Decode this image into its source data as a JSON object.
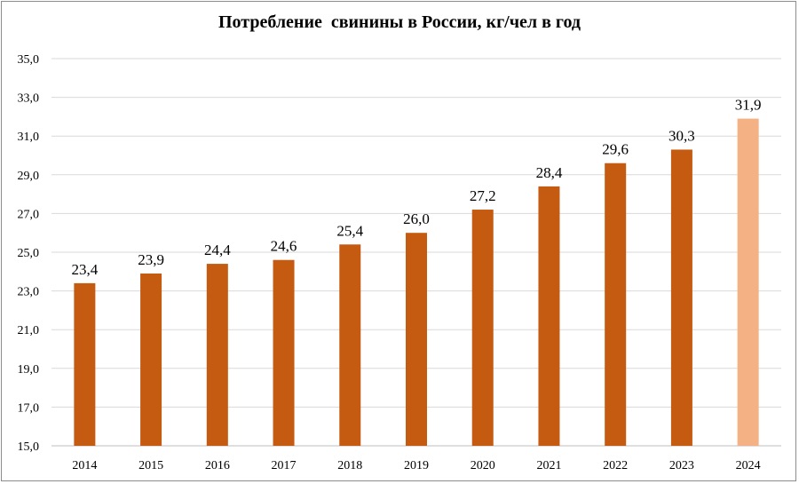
{
  "chart_data": {
    "type": "bar",
    "title": "Потребление  свинины в России, кг/чел в год",
    "categories": [
      "2014",
      "2015",
      "2016",
      "2017",
      "2018",
      "2019",
      "2020",
      "2021",
      "2022",
      "2023",
      "2024"
    ],
    "values": [
      23.4,
      23.9,
      24.4,
      24.6,
      25.4,
      26.0,
      27.2,
      28.4,
      29.6,
      30.3,
      31.9
    ],
    "data_labels": [
      "23,4",
      "23,9",
      "24,4",
      "24,6",
      "25,4",
      "26,0",
      "27,2",
      "28,4",
      "29,6",
      "30,3",
      "31,9"
    ],
    "ylim": [
      15,
      35
    ],
    "y_ticks": [
      "15,0",
      "17,0",
      "19,0",
      "21,0",
      "23,0",
      "25,0",
      "27,0",
      "29,0",
      "31,0",
      "33,0",
      "35,0"
    ],
    "grid": true,
    "legend": "none",
    "colors": {
      "bar": "#c55a11",
      "bar_highlight": "#f4b183",
      "grid": "#d9d9d9",
      "axis": "#bfbfbf"
    },
    "highlight_index": 10
  }
}
